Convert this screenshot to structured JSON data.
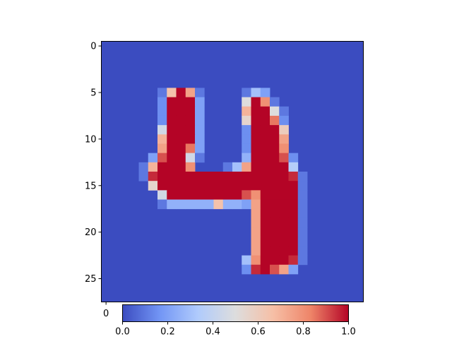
{
  "chart_data": {
    "type": "heatmap",
    "title": "",
    "xlabel": "",
    "ylabel": "",
    "colormap": "coolwarm",
    "colormap_stops": [
      "#3b4cc0",
      "#7396f5",
      "#b0cbfc",
      "#dddddd",
      "#f6bfa6",
      "#ee8468",
      "#b40426"
    ],
    "nrows": 28,
    "ncols": 28,
    "xlim": [
      -0.5,
      27.5
    ],
    "ylim": [
      27.5,
      -0.5
    ],
    "y_ticks": [
      0,
      5,
      10,
      15,
      20,
      25
    ],
    "y_tick_labels": [
      "0",
      "5",
      "10",
      "15",
      "20",
      "25"
    ],
    "x_ticks_visible": [
      0
    ],
    "x_tick_labels_visible": [
      "0"
    ],
    "colorbar": {
      "orientation": "horizontal",
      "range": [
        0.0,
        1.0
      ],
      "ticks": [
        0.0,
        0.2,
        0.4,
        0.6,
        0.8,
        1.0
      ],
      "tick_labels": [
        "0.0",
        "0.2",
        "0.4",
        "0.6",
        "0.8",
        "1.0"
      ]
    },
    "cells": [
      [
        5,
        6,
        0.1
      ],
      [
        5,
        7,
        0.65
      ],
      [
        5,
        8,
        1.0
      ],
      [
        5,
        9,
        0.75
      ],
      [
        5,
        10,
        0.1
      ],
      [
        5,
        15,
        0.1
      ],
      [
        5,
        16,
        0.3
      ],
      [
        5,
        17,
        0.2
      ],
      [
        6,
        6,
        0.15
      ],
      [
        6,
        7,
        1.0
      ],
      [
        6,
        8,
        1.0
      ],
      [
        6,
        9,
        1.0
      ],
      [
        6,
        10,
        0.2
      ],
      [
        6,
        15,
        0.5
      ],
      [
        6,
        16,
        1.0
      ],
      [
        6,
        17,
        0.8
      ],
      [
        6,
        18,
        0.1
      ],
      [
        7,
        6,
        0.15
      ],
      [
        7,
        7,
        1.0
      ],
      [
        7,
        8,
        1.0
      ],
      [
        7,
        9,
        1.0
      ],
      [
        7,
        10,
        0.2
      ],
      [
        7,
        15,
        0.7
      ],
      [
        7,
        16,
        1.0
      ],
      [
        7,
        17,
        1.0
      ],
      [
        7,
        18,
        0.5
      ],
      [
        7,
        19,
        0.1
      ],
      [
        8,
        6,
        0.15
      ],
      [
        8,
        7,
        1.0
      ],
      [
        8,
        8,
        1.0
      ],
      [
        8,
        9,
        1.0
      ],
      [
        8,
        10,
        0.2
      ],
      [
        8,
        15,
        0.55
      ],
      [
        8,
        16,
        1.0
      ],
      [
        8,
        17,
        1.0
      ],
      [
        8,
        18,
        0.85
      ],
      [
        8,
        19,
        0.15
      ],
      [
        9,
        6,
        0.45
      ],
      [
        9,
        7,
        1.0
      ],
      [
        9,
        8,
        1.0
      ],
      [
        9,
        9,
        1.0
      ],
      [
        9,
        10,
        0.2
      ],
      [
        9,
        15,
        0.15
      ],
      [
        9,
        16,
        1.0
      ],
      [
        9,
        17,
        1.0
      ],
      [
        9,
        18,
        1.0
      ],
      [
        9,
        19,
        0.6
      ],
      [
        10,
        6,
        0.7
      ],
      [
        10,
        7,
        1.0
      ],
      [
        10,
        8,
        1.0
      ],
      [
        10,
        9,
        1.0
      ],
      [
        10,
        10,
        0.2
      ],
      [
        10,
        15,
        0.15
      ],
      [
        10,
        16,
        1.0
      ],
      [
        10,
        17,
        1.0
      ],
      [
        10,
        18,
        1.0
      ],
      [
        10,
        19,
        0.75
      ],
      [
        11,
        6,
        0.75
      ],
      [
        11,
        7,
        1.0
      ],
      [
        11,
        8,
        1.0
      ],
      [
        11,
        9,
        0.85
      ],
      [
        11,
        10,
        0.2
      ],
      [
        11,
        15,
        0.15
      ],
      [
        11,
        16,
        1.0
      ],
      [
        11,
        17,
        1.0
      ],
      [
        11,
        18,
        1.0
      ],
      [
        11,
        19,
        0.8
      ],
      [
        12,
        5,
        0.2
      ],
      [
        12,
        6,
        0.9
      ],
      [
        12,
        7,
        1.0
      ],
      [
        12,
        8,
        1.0
      ],
      [
        12,
        9,
        0.45
      ],
      [
        12,
        10,
        0.1
      ],
      [
        12,
        15,
        0.25
      ],
      [
        12,
        16,
        1.0
      ],
      [
        12,
        17,
        1.0
      ],
      [
        12,
        18,
        1.0
      ],
      [
        12,
        19,
        0.9
      ],
      [
        12,
        20,
        0.15
      ],
      [
        13,
        4,
        0.1
      ],
      [
        13,
        5,
        0.7
      ],
      [
        13,
        6,
        1.0
      ],
      [
        13,
        7,
        1.0
      ],
      [
        13,
        8,
        1.0
      ],
      [
        13,
        9,
        0.8
      ],
      [
        13,
        13,
        0.1
      ],
      [
        13,
        14,
        0.3
      ],
      [
        13,
        15,
        0.75
      ],
      [
        13,
        16,
        1.0
      ],
      [
        13,
        17,
        1.0
      ],
      [
        13,
        18,
        1.0
      ],
      [
        13,
        19,
        1.0
      ],
      [
        13,
        20,
        0.35
      ],
      [
        14,
        4,
        0.1
      ],
      [
        14,
        5,
        0.95
      ],
      [
        14,
        6,
        1.0
      ],
      [
        14,
        7,
        1.0
      ],
      [
        14,
        8,
        1.0
      ],
      [
        14,
        9,
        1.0
      ],
      [
        14,
        10,
        1.0
      ],
      [
        14,
        11,
        1.0
      ],
      [
        14,
        12,
        1.0
      ],
      [
        14,
        13,
        1.0
      ],
      [
        14,
        14,
        1.0
      ],
      [
        14,
        15,
        1.0
      ],
      [
        14,
        16,
        1.0
      ],
      [
        14,
        17,
        1.0
      ],
      [
        14,
        18,
        1.0
      ],
      [
        14,
        19,
        1.0
      ],
      [
        14,
        20,
        0.95
      ],
      [
        14,
        21,
        0.1
      ],
      [
        15,
        5,
        0.55
      ],
      [
        15,
        6,
        1.0
      ],
      [
        15,
        7,
        1.0
      ],
      [
        15,
        8,
        1.0
      ],
      [
        15,
        9,
        1.0
      ],
      [
        15,
        10,
        1.0
      ],
      [
        15,
        11,
        1.0
      ],
      [
        15,
        12,
        1.0
      ],
      [
        15,
        13,
        1.0
      ],
      [
        15,
        14,
        1.0
      ],
      [
        15,
        15,
        1.0
      ],
      [
        15,
        16,
        1.0
      ],
      [
        15,
        17,
        1.0
      ],
      [
        15,
        18,
        1.0
      ],
      [
        15,
        19,
        1.0
      ],
      [
        15,
        20,
        1.0
      ],
      [
        15,
        21,
        0.1
      ],
      [
        16,
        6,
        0.45
      ],
      [
        16,
        7,
        1.0
      ],
      [
        16,
        8,
        1.0
      ],
      [
        16,
        9,
        1.0
      ],
      [
        16,
        10,
        1.0
      ],
      [
        16,
        11,
        1.0
      ],
      [
        16,
        12,
        1.0
      ],
      [
        16,
        13,
        1.0
      ],
      [
        16,
        14,
        1.0
      ],
      [
        16,
        15,
        0.9
      ],
      [
        16,
        16,
        0.8
      ],
      [
        16,
        17,
        1.0
      ],
      [
        16,
        18,
        1.0
      ],
      [
        16,
        19,
        1.0
      ],
      [
        16,
        20,
        1.0
      ],
      [
        16,
        21,
        0.1
      ],
      [
        17,
        6,
        0.1
      ],
      [
        17,
        7,
        0.25
      ],
      [
        17,
        8,
        0.25
      ],
      [
        17,
        9,
        0.25
      ],
      [
        17,
        10,
        0.25
      ],
      [
        17,
        11,
        0.25
      ],
      [
        17,
        12,
        0.65
      ],
      [
        17,
        13,
        0.25
      ],
      [
        17,
        14,
        0.25
      ],
      [
        17,
        15,
        0.2
      ],
      [
        17,
        16,
        0.75
      ],
      [
        17,
        17,
        1.0
      ],
      [
        17,
        18,
        1.0
      ],
      [
        17,
        19,
        1.0
      ],
      [
        17,
        20,
        1.0
      ],
      [
        17,
        21,
        0.1
      ],
      [
        18,
        16,
        0.75
      ],
      [
        18,
        17,
        1.0
      ],
      [
        18,
        18,
        1.0
      ],
      [
        18,
        19,
        1.0
      ],
      [
        18,
        20,
        1.0
      ],
      [
        18,
        21,
        0.1
      ],
      [
        19,
        16,
        0.75
      ],
      [
        19,
        17,
        1.0
      ],
      [
        19,
        18,
        1.0
      ],
      [
        19,
        19,
        1.0
      ],
      [
        19,
        20,
        1.0
      ],
      [
        19,
        21,
        0.1
      ],
      [
        20,
        16,
        0.75
      ],
      [
        20,
        17,
        1.0
      ],
      [
        20,
        18,
        1.0
      ],
      [
        20,
        19,
        1.0
      ],
      [
        20,
        20,
        1.0
      ],
      [
        20,
        21,
        0.1
      ],
      [
        21,
        16,
        0.75
      ],
      [
        21,
        17,
        1.0
      ],
      [
        21,
        18,
        1.0
      ],
      [
        21,
        19,
        1.0
      ],
      [
        21,
        20,
        1.0
      ],
      [
        21,
        21,
        0.1
      ],
      [
        22,
        16,
        0.75
      ],
      [
        22,
        17,
        1.0
      ],
      [
        22,
        18,
        1.0
      ],
      [
        22,
        19,
        1.0
      ],
      [
        22,
        20,
        1.0
      ],
      [
        22,
        21,
        0.1
      ],
      [
        23,
        15,
        0.3
      ],
      [
        23,
        16,
        0.8
      ],
      [
        23,
        17,
        1.0
      ],
      [
        23,
        18,
        1.0
      ],
      [
        23,
        19,
        1.0
      ],
      [
        23,
        20,
        0.95
      ],
      [
        23,
        21,
        0.1
      ],
      [
        24,
        15,
        0.15
      ],
      [
        24,
        16,
        0.95
      ],
      [
        24,
        17,
        1.0
      ],
      [
        24,
        18,
        0.9
      ],
      [
        24,
        19,
        0.75
      ],
      [
        24,
        20,
        0.2
      ]
    ]
  }
}
